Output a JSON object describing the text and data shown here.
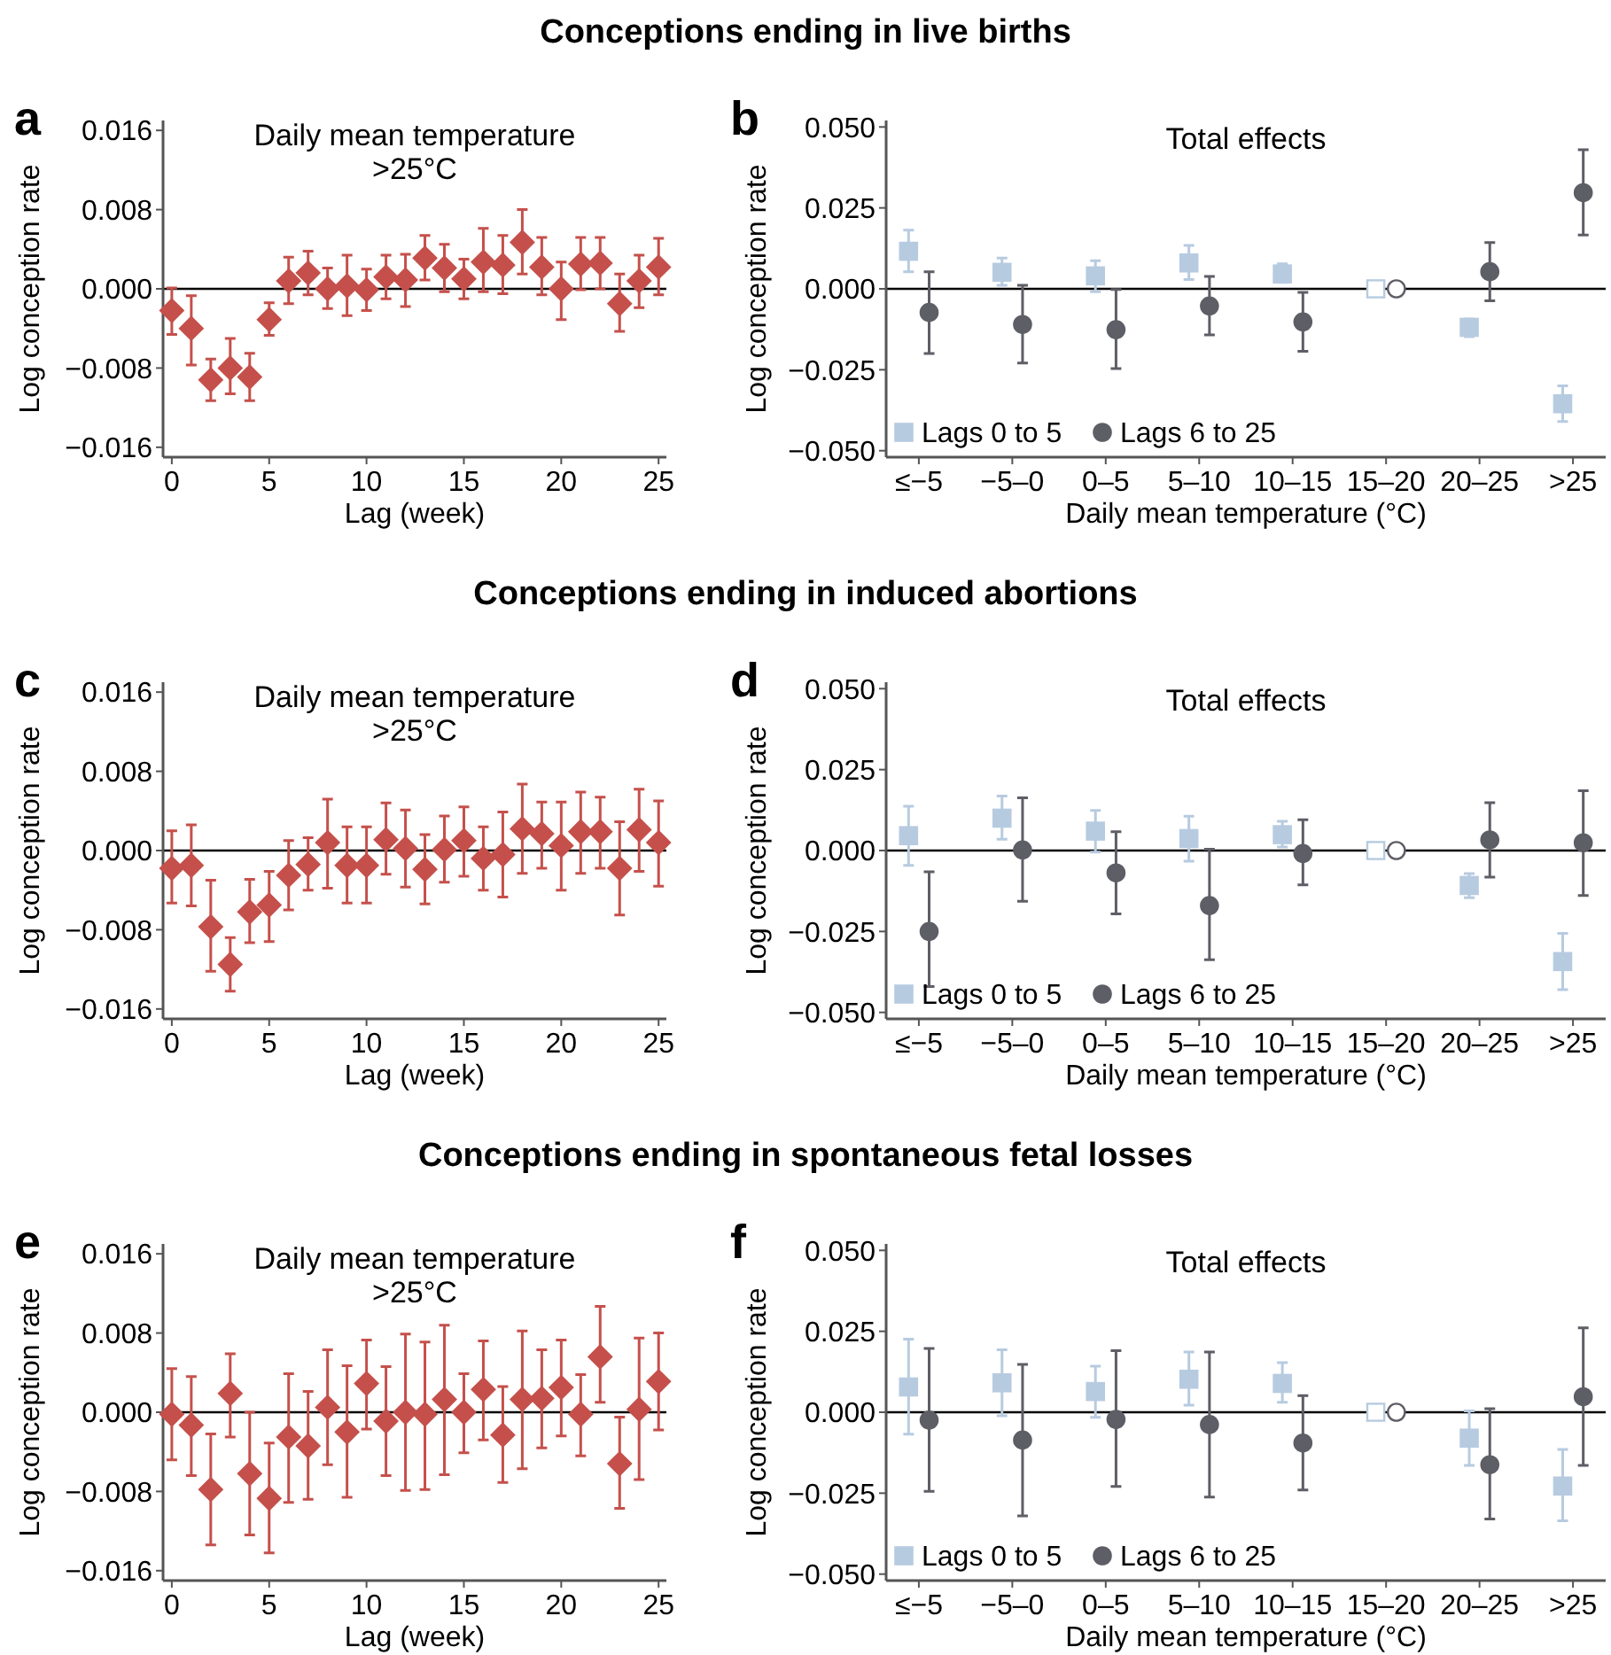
{
  "chart_data": [
    {
      "type": "scatter",
      "title": "Conceptions ending in live births",
      "subtitle": "Daily mean temperature >25°C",
      "annotations": [
        "a"
      ],
      "xlabel": "Lag (week)",
      "ylabel": "Log conception rate",
      "marker": "diamond",
      "x": [
        0,
        1,
        2,
        3,
        4,
        5,
        6,
        7,
        8,
        9,
        10,
        11,
        12,
        13,
        14,
        15,
        16,
        17,
        18,
        19,
        20,
        21,
        22,
        23,
        24,
        25
      ],
      "series": [
        {
          "color": "#c5504b",
          "values": [
            -0.0022,
            -0.004,
            -0.0092,
            -0.008,
            -0.0089,
            -0.0031,
            0.0008,
            0.0016,
            0.0,
            0.0003,
            -0.0001,
            0.0012,
            0.0009,
            0.0031,
            0.0021,
            0.001,
            0.0027,
            0.0024,
            0.0047,
            0.0022,
            0.0,
            0.0025,
            0.0026,
            -0.0015,
            0.0008,
            0.0022
          ],
          "errors": [
            [
              -0.0046,
              0.0001
            ],
            [
              -0.0077,
              -0.0007
            ],
            [
              -0.0113,
              -0.0071
            ],
            [
              -0.0106,
              -0.005
            ],
            [
              -0.0113,
              -0.0065
            ],
            [
              -0.0047,
              -0.0014
            ],
            [
              -0.0015,
              0.0032
            ],
            [
              -0.0006,
              0.0038
            ],
            [
              -0.002,
              0.0021
            ],
            [
              -0.0027,
              0.0034
            ],
            [
              -0.0022,
              0.002
            ],
            [
              -0.001,
              0.0034
            ],
            [
              -0.0018,
              0.0035
            ],
            [
              0.0009,
              0.0054
            ],
            [
              -0.0003,
              0.0045
            ],
            [
              -0.001,
              0.003
            ],
            [
              -0.0003,
              0.0061
            ],
            [
              -0.0005,
              0.0054
            ],
            [
              0.0015,
              0.008
            ],
            [
              -0.0006,
              0.0052
            ],
            [
              -0.0031,
              0.0027
            ],
            [
              -0.0001,
              0.0052
            ],
            [
              0.0,
              0.0052
            ],
            [
              -0.0043,
              0.0015
            ],
            [
              -0.0019,
              0.0034
            ],
            [
              -0.0006,
              0.0051
            ]
          ]
        }
      ],
      "xlim": [
        -0.45,
        25.4
      ],
      "xticks": [
        0,
        5,
        10,
        15,
        20,
        25
      ],
      "ylim": [
        -0.017,
        0.017
      ],
      "yticks": [
        {
          "value": -0.016,
          "label": "−0.016"
        },
        {
          "value": -0.008,
          "label": "−0.008"
        },
        {
          "value": 0,
          "label": "0.000"
        },
        {
          "value": 0.008,
          "label": "0.008"
        },
        {
          "value": 0.016,
          "label": "0.016"
        }
      ],
      "ref_lines": [
        {
          "axis": "y",
          "value": 0
        }
      ],
      "grid": false,
      "legend": false
    },
    {
      "type": "scatter",
      "subtitle": "Total effects",
      "annotations": [
        "b"
      ],
      "xlabel": "Daily mean temperature (°C)",
      "ylabel": "Log conception rate",
      "legend": "bottom left",
      "categories": [
        "≤−5",
        "−5–0",
        "0–5",
        "5–10",
        "10–15",
        "15–20",
        "20–25",
        ">25"
      ],
      "series": [
        {
          "name": "Lags 0 to 5",
          "color": "#b7cbe0",
          "marker": "square",
          "values": [
            0.0116,
            0.0051,
            0.004,
            0.008,
            0.0046,
            0,
            -0.0119,
            -0.0355
          ],
          "errors": [
            [
              0.0053,
              0.0181
            ],
            [
              0.0011,
              0.0095
            ],
            [
              -0.0009,
              0.0087
            ],
            [
              0.0029,
              0.0134
            ],
            [
              0.002,
              0.0077
            ],
            null,
            [
              -0.0148,
              -0.0093
            ],
            [
              -0.041,
              -0.03
            ]
          ]
        },
        {
          "name": "Lags 6 to 25",
          "color": "#5d5e66",
          "marker": "circle",
          "values": [
            -0.0073,
            -0.011,
            -0.0126,
            -0.0053,
            -0.0102,
            0,
            0.0053,
            0.0297
          ],
          "errors": [
            [
              -0.02,
              0.0053
            ],
            [
              -0.0229,
              0.0011
            ],
            [
              -0.0246,
              -0.0002
            ],
            [
              -0.0142,
              0.0038
            ],
            [
              -0.0193,
              -0.0011
            ],
            null,
            [
              -0.0037,
              0.0143
            ],
            [
              0.0166,
              0.043
            ]
          ]
        }
      ],
      "ylim": [
        -0.052,
        0.052
      ],
      "yticks": [
        {
          "value": -0.05,
          "label": "−0.050"
        },
        {
          "value": -0.025,
          "label": "−0.025"
        },
        {
          "value": 0,
          "label": "0.000"
        },
        {
          "value": 0.025,
          "label": "0.025"
        },
        {
          "value": 0.05,
          "label": "0.050"
        }
      ],
      "ref_lines": [
        {
          "axis": "y",
          "value": 0
        }
      ],
      "grid": false
    },
    {
      "type": "scatter",
      "title": "Conceptions ending in induced abortions",
      "subtitle": "Daily mean temperature >25°C",
      "annotations": [
        "c"
      ],
      "xlabel": "Lag (week)",
      "ylabel": "Log conception rate",
      "marker": "diamond",
      "x": [
        0,
        1,
        2,
        3,
        4,
        5,
        6,
        7,
        8,
        9,
        10,
        11,
        12,
        13,
        14,
        15,
        16,
        17,
        18,
        19,
        20,
        21,
        22,
        23,
        24,
        25
      ],
      "series": [
        {
          "color": "#c5504b",
          "values": [
            -0.0018,
            -0.0015,
            -0.0077,
            -0.0115,
            -0.0062,
            -0.0055,
            -0.0025,
            -0.0014,
            0.0008,
            -0.0015,
            -0.0015,
            0.0011,
            0.0002,
            -0.0019,
            0.0001,
            0.001,
            -0.0008,
            -0.0004,
            0.0022,
            0.0017,
            0.0005,
            0.0019,
            0.0019,
            -0.0018,
            0.0021,
            0.0008
          ],
          "errors": [
            [
              -0.0053,
              0.002
            ],
            [
              -0.0056,
              0.0026
            ],
            [
              -0.0122,
              -0.003
            ],
            [
              -0.0142,
              -0.0088
            ],
            [
              -0.0093,
              -0.0029
            ],
            [
              -0.0092,
              -0.0021
            ],
            [
              -0.006,
              0.001
            ],
            [
              -0.004,
              0.0013
            ],
            [
              -0.0038,
              0.0052
            ],
            [
              -0.0053,
              0.0024
            ],
            [
              -0.0053,
              0.0024
            ],
            [
              -0.0024,
              0.0048
            ],
            [
              -0.0037,
              0.0041
            ],
            [
              -0.0054,
              0.0016
            ],
            [
              -0.0032,
              0.0035
            ],
            [
              -0.0026,
              0.0044
            ],
            [
              -0.004,
              0.0024
            ],
            [
              -0.0047,
              0.0039
            ],
            [
              -0.0023,
              0.0067
            ],
            [
              -0.0018,
              0.0049
            ],
            [
              -0.004,
              0.0049
            ],
            [
              -0.0023,
              0.0059
            ],
            [
              -0.0018,
              0.0054
            ],
            [
              -0.0065,
              0.0029
            ],
            [
              -0.0021,
              0.0062
            ],
            [
              -0.0036,
              0.005
            ]
          ]
        }
      ],
      "xlim": [
        -0.45,
        25.4
      ],
      "xticks": [
        0,
        5,
        10,
        15,
        20,
        25
      ],
      "ylim": [
        -0.017,
        0.017
      ],
      "yticks": [
        {
          "value": -0.016,
          "label": "−0.016"
        },
        {
          "value": -0.008,
          "label": "−0.008"
        },
        {
          "value": 0,
          "label": "0.000"
        },
        {
          "value": 0.008,
          "label": "0.008"
        },
        {
          "value": 0.016,
          "label": "0.016"
        }
      ],
      "ref_lines": [
        {
          "axis": "y",
          "value": 0
        }
      ],
      "grid": false,
      "legend": false
    },
    {
      "type": "scatter",
      "subtitle": "Total effects",
      "annotations": [
        "d"
      ],
      "xlabel": "Daily mean temperature (°C)",
      "ylabel": "Log conception rate",
      "legend": "bottom left",
      "categories": [
        "≤−5",
        "−5–0",
        "0–5",
        "5–10",
        "10–15",
        "15–20",
        "20–25",
        ">25"
      ],
      "series": [
        {
          "name": "Lags 0 to 5",
          "color": "#b7cbe0",
          "marker": "square",
          "values": [
            0.0046,
            0.01,
            0.006,
            0.0037,
            0.0049,
            0,
            -0.0108,
            -0.0343
          ],
          "errors": [
            [
              -0.0046,
              0.0137
            ],
            [
              0.0035,
              0.0168
            ],
            [
              -0.0005,
              0.0124
            ],
            [
              -0.0033,
              0.0106
            ],
            [
              0.0011,
              0.009
            ],
            null,
            [
              -0.0146,
              -0.0071
            ],
            [
              -0.043,
              -0.0256
            ]
          ]
        },
        {
          "name": "Lags 6 to 25",
          "color": "#5d5e66",
          "marker": "circle",
          "values": [
            -0.025,
            0.0002,
            -0.0069,
            -0.017,
            -0.0009,
            0,
            0.0033,
            0.0024
          ],
          "errors": [
            [
              -0.042,
              -0.0066
            ],
            [
              -0.0157,
              0.0163
            ],
            [
              -0.0196,
              0.0058
            ],
            [
              -0.0337,
              0.0004
            ],
            [
              -0.0106,
              0.0095
            ],
            null,
            [
              -0.0082,
              0.0148
            ],
            [
              -0.0139,
              0.0185
            ]
          ]
        }
      ],
      "ylim": [
        -0.052,
        0.052
      ],
      "yticks": [
        {
          "value": -0.05,
          "label": "−0.050"
        },
        {
          "value": -0.025,
          "label": "−0.025"
        },
        {
          "value": 0,
          "label": "0.000"
        },
        {
          "value": 0.025,
          "label": "0.025"
        },
        {
          "value": 0.05,
          "label": "0.050"
        }
      ],
      "ref_lines": [
        {
          "axis": "y",
          "value": 0
        }
      ],
      "grid": false
    },
    {
      "type": "scatter",
      "title": "Conceptions ending in spontaneous fetal losses",
      "subtitle": "Daily mean temperature >25°C",
      "annotations": [
        "e"
      ],
      "xlabel": "Lag (week)",
      "ylabel": "Log conception rate",
      "marker": "diamond",
      "x": [
        0,
        1,
        2,
        3,
        4,
        5,
        6,
        7,
        8,
        9,
        10,
        11,
        12,
        13,
        14,
        15,
        16,
        17,
        18,
        19,
        20,
        21,
        22,
        23,
        24,
        25
      ],
      "series": [
        {
          "color": "#c5504b",
          "values": [
            -0.0002,
            -0.0013,
            -0.0078,
            0.0019,
            -0.0062,
            -0.0087,
            -0.0025,
            -0.0034,
            0.0005,
            -0.002,
            0.0029,
            -0.0009,
            0.0,
            -0.0002,
            0.0013,
            0.0,
            0.0023,
            -0.0023,
            0.0013,
            0.0014,
            0.0025,
            -0.0002,
            0.0056,
            -0.0052,
            0.0003,
            0.0031
          ],
          "errors": [
            [
              -0.0048,
              0.0044
            ],
            [
              -0.0064,
              0.0036
            ],
            [
              -0.0134,
              -0.0022
            ],
            [
              -0.0025,
              0.0059
            ],
            [
              -0.0124,
              0.0
            ],
            [
              -0.0142,
              -0.0031
            ],
            [
              -0.0091,
              0.0039
            ],
            [
              -0.0088,
              0.0021
            ],
            [
              -0.0053,
              0.0063
            ],
            [
              -0.0086,
              0.0047
            ],
            [
              -0.0017,
              0.0073
            ],
            [
              -0.0064,
              0.0046
            ],
            [
              -0.0079,
              0.0079
            ],
            [
              -0.0078,
              0.0071
            ],
            [
              -0.0063,
              0.0088
            ],
            [
              -0.0041,
              0.0039
            ],
            [
              -0.0028,
              0.0072
            ],
            [
              -0.0071,
              0.0026
            ],
            [
              -0.0057,
              0.0082
            ],
            [
              -0.0036,
              0.0063
            ],
            [
              -0.0024,
              0.0073
            ],
            [
              -0.0044,
              0.0038
            ],
            [
              0.001,
              0.0107
            ],
            [
              -0.0097,
              -0.0005
            ],
            [
              -0.0068,
              0.0075
            ],
            [
              -0.0018,
              0.008
            ]
          ]
        }
      ],
      "xlim": [
        -0.45,
        25.4
      ],
      "xticks": [
        0,
        5,
        10,
        15,
        20,
        25
      ],
      "ylim": [
        -0.017,
        0.017
      ],
      "yticks": [
        {
          "value": -0.016,
          "label": "−0.016"
        },
        {
          "value": -0.008,
          "label": "−0.008"
        },
        {
          "value": 0,
          "label": "0.000"
        },
        {
          "value": 0.008,
          "label": "0.008"
        },
        {
          "value": 0.016,
          "label": "0.016"
        }
      ],
      "ref_lines": [
        {
          "axis": "y",
          "value": 0
        }
      ],
      "grid": false,
      "legend": false
    },
    {
      "type": "scatter",
      "subtitle": "Total effects",
      "annotations": [
        "f"
      ],
      "xlabel": "Daily mean temperature (°C)",
      "ylabel": "Log conception rate",
      "legend": "bottom left",
      "categories": [
        "≤−5",
        "−5–0",
        "0–5",
        "5–10",
        "10–15",
        "15–20",
        "20–25",
        ">25"
      ],
      "series": [
        {
          "name": "Lags 0 to 5",
          "color": "#b7cbe0",
          "marker": "square",
          "values": [
            0.0078,
            0.0091,
            0.0064,
            0.0102,
            0.0089,
            0,
            -0.008,
            -0.0228
          ],
          "errors": [
            [
              -0.0068,
              0.0226
            ],
            [
              -0.0011,
              0.0193
            ],
            [
              -0.0016,
              0.0142
            ],
            [
              0.0022,
              0.0186
            ],
            [
              0.0031,
              0.0153
            ],
            null,
            [
              -0.0164,
              0.0004
            ],
            [
              -0.0335,
              -0.0115
            ]
          ]
        },
        {
          "name": "Lags 6 to 25",
          "color": "#5d5e66",
          "marker": "circle",
          "values": [
            -0.0024,
            -0.0086,
            -0.0022,
            -0.0038,
            -0.0095,
            0,
            -0.0162,
            0.0048
          ],
          "errors": [
            [
              -0.0244,
              0.0197
            ],
            [
              -0.032,
              0.0148
            ],
            [
              -0.0229,
              0.019
            ],
            [
              -0.0262,
              0.0186
            ],
            [
              -0.024,
              0.0051
            ],
            null,
            [
              -0.033,
              0.0011
            ],
            [
              -0.0164,
              0.0261
            ]
          ]
        }
      ],
      "ylim": [
        -0.052,
        0.052
      ],
      "yticks": [
        {
          "value": -0.05,
          "label": "−0.050"
        },
        {
          "value": -0.025,
          "label": "−0.025"
        },
        {
          "value": 0,
          "label": "0.000"
        },
        {
          "value": 0.025,
          "label": "0.025"
        },
        {
          "value": 0.05,
          "label": "0.050"
        }
      ],
      "ref_lines": [
        {
          "axis": "y",
          "value": 0
        }
      ],
      "grid": false
    }
  ]
}
